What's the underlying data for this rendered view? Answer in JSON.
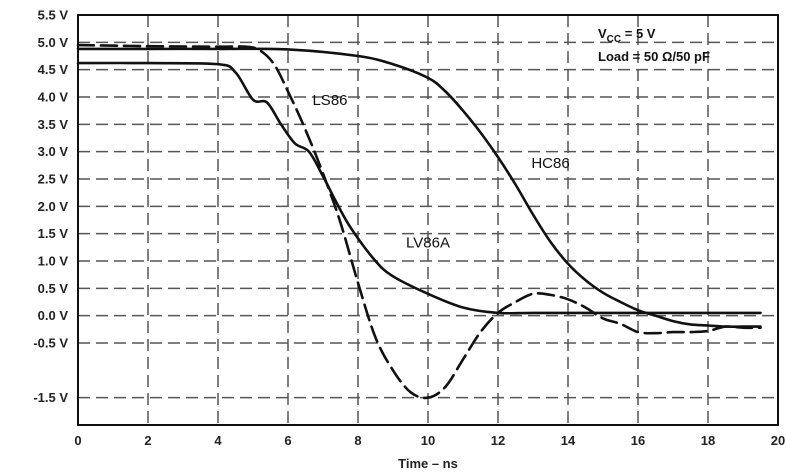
{
  "chart_data": {
    "type": "line",
    "title": "",
    "xlabel": "Time – ns",
    "ylabel": "",
    "xlim": [
      0,
      20
    ],
    "ylim": [
      -2.0,
      5.5
    ],
    "grid": true,
    "grid_style": "dashed",
    "x_ticks": [
      0,
      2,
      4,
      6,
      8,
      10,
      12,
      14,
      16,
      18,
      20
    ],
    "x_tick_labels": [
      "0",
      "2",
      "4",
      "6",
      "8",
      "10",
      "12",
      "14",
      "16",
      "18",
      "20"
    ],
    "y_ticks": [
      5.5,
      5.0,
      4.5,
      4.0,
      3.5,
      3.0,
      2.5,
      2.0,
      1.5,
      1.0,
      0.5,
      0.0,
      -0.5,
      -1.5
    ],
    "y_tick_labels": [
      "5.5 V",
      "5.0 V",
      "4.5 V",
      "4.0 V",
      "3.5 V",
      "3.0 V",
      "2.5 V",
      "2.0 V",
      "1.5 V",
      "1.0 V",
      "0.5 V",
      "0.0 V",
      "-0.5 V",
      "-1.5 V"
    ],
    "annotation": {
      "vcc_main": "V",
      "vcc_sub": "CC",
      "vcc_rest": " = 5 V",
      "load": "Load = 50 Ω/50 pF"
    },
    "series": [
      {
        "name": "LS86",
        "style": "dashed",
        "x": [
          0,
          2,
          4,
          4.8,
          5.2,
          5.6,
          6.0,
          6.5,
          7.0,
          7.5,
          8.0,
          8.5,
          9.0,
          9.5,
          10.0,
          10.5,
          11.0,
          11.5,
          12.0,
          12.5,
          13.0,
          13.5,
          14.0,
          14.5,
          15.0,
          15.5,
          16.0,
          16.5,
          17.0,
          17.5,
          18.0,
          18.5,
          19.0,
          19.5
        ],
        "y": [
          4.95,
          4.93,
          4.92,
          4.92,
          4.85,
          4.6,
          4.1,
          3.4,
          2.6,
          1.7,
          0.6,
          -0.4,
          -1.0,
          -1.4,
          -1.5,
          -1.3,
          -0.8,
          -0.3,
          0.05,
          0.25,
          0.4,
          0.38,
          0.3,
          0.15,
          -0.05,
          -0.15,
          -0.3,
          -0.32,
          -0.3,
          -0.3,
          -0.28,
          -0.2,
          -0.22,
          -0.22
        ]
      },
      {
        "name": "HC86",
        "style": "solid",
        "x": [
          0,
          2,
          4,
          6,
          8,
          9,
          10,
          10.5,
          11,
          11.5,
          12,
          12.5,
          13,
          13.5,
          14,
          14.5,
          15,
          15.5,
          16,
          16.5,
          17,
          17.5,
          18,
          18.5,
          19,
          19.5
        ],
        "y": [
          4.88,
          4.88,
          4.88,
          4.87,
          4.75,
          4.6,
          4.35,
          4.1,
          3.75,
          3.35,
          2.9,
          2.4,
          1.85,
          1.35,
          0.95,
          0.65,
          0.42,
          0.25,
          0.1,
          0.0,
          -0.1,
          -0.16,
          -0.18,
          -0.2,
          -0.2,
          -0.2
        ]
      },
      {
        "name": "LV86A",
        "style": "solid",
        "x": [
          0,
          2,
          4,
          4.5,
          5.0,
          5.4,
          5.8,
          6.2,
          6.6,
          7.0,
          7.4,
          7.8,
          8.5,
          9.0,
          10.0,
          11.0,
          12.0,
          13.0,
          14.0,
          16.0,
          18.0,
          19.5
        ],
        "y": [
          4.62,
          4.62,
          4.6,
          4.45,
          3.95,
          3.9,
          3.5,
          3.15,
          3.0,
          2.55,
          2.05,
          1.6,
          1.0,
          0.72,
          0.4,
          0.15,
          0.05,
          0.05,
          0.05,
          0.05,
          0.05,
          0.05
        ]
      }
    ],
    "series_label_positions": [
      {
        "name": "LS86",
        "x": 7.2,
        "y": 3.85
      },
      {
        "name": "HC86",
        "x": 13.5,
        "y": 2.7
      },
      {
        "name": "LV86A",
        "x": 10.0,
        "y": 1.25
      }
    ]
  }
}
